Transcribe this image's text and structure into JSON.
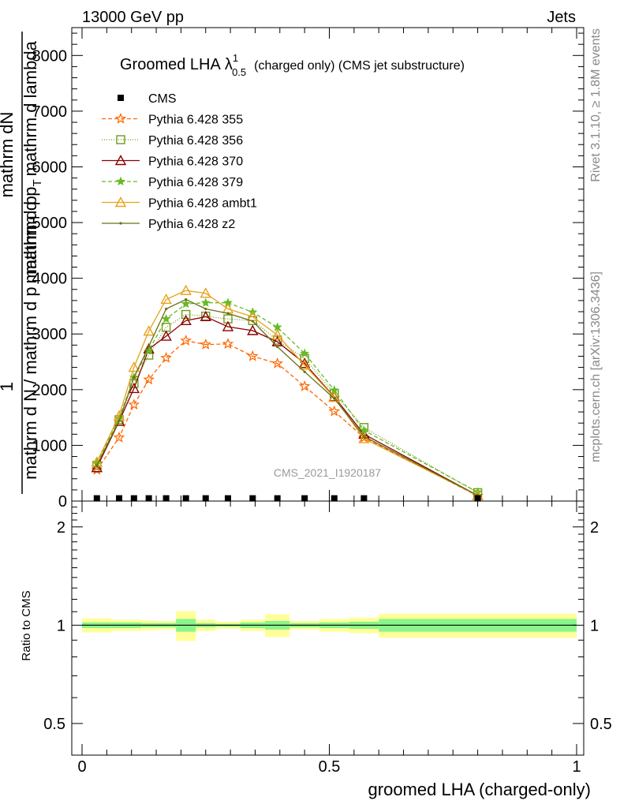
{
  "header": {
    "left": "13000 GeV pp",
    "right": "Jets"
  },
  "side_labels": {
    "rivet": "Rivet 3.1.10, ≥ 1.8M events",
    "mcplots": "mcplots.cern.ch [arXiv:1306.3436]"
  },
  "watermark": "CMS_2021_I1920187",
  "title": {
    "main": "Groomed LHA",
    "symbol": "λ",
    "sup": "1",
    "sub": "0.5",
    "suffix": "(charged only) (CMS jet substructure)"
  },
  "ylabel_top": {
    "numerator": "mathrm dN",
    "denominator": "mathrm d p",
    "denominator_sub": "T",
    "denominator_tail": "mathrm d lambda"
  },
  "ylabel_full": {
    "numerator": "1",
    "denominator": "mathrm d N / mathrm d p",
    "denominator_tail": "mathrm d p"
  },
  "xlabel": "groomed LHA (charged-only)",
  "ratio_ylabel": "Ratio to CMS",
  "colors": {
    "s355": "#ff6600",
    "s356": "#6f9a1c",
    "s370": "#8b0000",
    "s379": "#66bb22",
    "ambt1": "#e8a11a",
    "z2": "#6b7018",
    "band_inner": "#8af58a",
    "band_outer": "#ffff99"
  },
  "chart_data": [
    {
      "type": "line",
      "title": "Groomed LHA λ^1_0.5 (charged only) (CMS jet substructure)",
      "xlabel": "groomed LHA (charged-only)",
      "ylabel": "1 / (mathrm d N / mathrm d p) · mathrm dN / (mathrm d p_T mathrm d lambda)",
      "xlim": [
        -0.04,
        1.01
      ],
      "ylim": [
        0,
        8500
      ],
      "yticks": [
        0,
        1000,
        2000,
        3000,
        4000,
        5000,
        6000,
        7000,
        8000
      ],
      "ytick_labels": [
        "0",
        "1000",
        "2000",
        "3000",
        "4000",
        "5000",
        "6000",
        "7000",
        "8000"
      ],
      "legend_position": "top-left",
      "x": [
        0.03,
        0.075,
        0.105,
        0.135,
        0.17,
        0.21,
        0.25,
        0.295,
        0.345,
        0.395,
        0.45,
        0.51,
        0.57,
        0.8
      ],
      "data_points": {
        "name": "CMS",
        "x": [
          0.03,
          0.075,
          0.105,
          0.135,
          0.17,
          0.21,
          0.25,
          0.295,
          0.345,
          0.395,
          0.45,
          0.51,
          0.57,
          0.8
        ],
        "y": [
          20,
          20,
          20,
          20,
          20,
          20,
          20,
          20,
          20,
          20,
          20,
          20,
          20,
          20
        ]
      },
      "series": [
        {
          "name": "Pythia 6.428 355",
          "color": "#ff6600",
          "dash": "5,3",
          "marker": "star-open",
          "values": [
            560,
            1140,
            1730,
            2180,
            2570,
            2880,
            2810,
            2820,
            2600,
            2470,
            2060,
            1610,
            1140,
            90
          ]
        },
        {
          "name": "Pythia 6.428 356",
          "color": "#6f9a1c",
          "dash": "1,2",
          "marker": "square-open",
          "values": [
            640,
            1460,
            2110,
            2620,
            3120,
            3350,
            3320,
            3270,
            3240,
            2890,
            2560,
            1930,
            1320,
            150
          ]
        },
        {
          "name": "Pythia 6.428 370",
          "color": "#8b0000",
          "dash": "",
          "marker": "triangle-open",
          "values": [
            600,
            1430,
            2020,
            2730,
            2960,
            3240,
            3310,
            3130,
            3060,
            2860,
            2470,
            1870,
            1200,
            100
          ]
        },
        {
          "name": "Pythia 6.428 379",
          "color": "#66bb22",
          "dash": "5,3",
          "marker": "star-filled",
          "values": [
            680,
            1480,
            2220,
            2700,
            3270,
            3540,
            3560,
            3560,
            3390,
            3120,
            2650,
            1990,
            1270,
            160
          ]
        },
        {
          "name": "Pythia 6.428 ambt1",
          "color": "#e8a11a",
          "dash": "",
          "marker": "triangle-open",
          "values": [
            700,
            1530,
            2400,
            3050,
            3620,
            3780,
            3730,
            3450,
            3310,
            2980,
            2440,
            1860,
            1120,
            100
          ]
        },
        {
          "name": "Pythia 6.428 z2",
          "color": "#6b7018",
          "dash": "",
          "marker": "dot",
          "values": [
            640,
            1440,
            2220,
            2780,
            3450,
            3620,
            3450,
            3370,
            3230,
            2770,
            2320,
            1840,
            1160,
            100
          ]
        }
      ]
    },
    {
      "type": "area",
      "ylabel": "Ratio to CMS",
      "xlabel": "groomed LHA (charged-only)",
      "ylim": [
        0.4,
        2.4
      ],
      "log_y": true,
      "yticks": [
        0.5,
        1,
        2
      ],
      "ytick_labels": [
        "0.5",
        "1",
        "2"
      ],
      "xticks": [
        0,
        0.5,
        1
      ],
      "xtick_labels": [
        "0",
        "0.5",
        "1"
      ],
      "reference_line": 1,
      "bins": [
        {
          "x": [
            0.0,
            0.06
          ],
          "inner": [
            0.98,
            1.02
          ],
          "outer": [
            0.95,
            1.05
          ]
        },
        {
          "x": [
            0.06,
            0.09
          ],
          "inner": [
            0.98,
            1.02
          ],
          "outer": [
            0.96,
            1.04
          ]
        },
        {
          "x": [
            0.09,
            0.12
          ],
          "inner": [
            0.98,
            1.02
          ],
          "outer": [
            0.96,
            1.04
          ]
        },
        {
          "x": [
            0.12,
            0.15
          ],
          "inner": [
            0.985,
            1.015
          ],
          "outer": [
            0.965,
            1.035
          ]
        },
        {
          "x": [
            0.15,
            0.19
          ],
          "inner": [
            0.985,
            1.015
          ],
          "outer": [
            0.97,
            1.03
          ]
        },
        {
          "x": [
            0.19,
            0.23
          ],
          "inner": [
            0.955,
            1.045
          ],
          "outer": [
            0.895,
            1.105
          ]
        },
        {
          "x": [
            0.23,
            0.27
          ],
          "inner": [
            0.985,
            1.015
          ],
          "outer": [
            0.96,
            1.04
          ]
        },
        {
          "x": [
            0.27,
            0.32
          ],
          "inner": [
            0.99,
            1.01
          ],
          "outer": [
            0.975,
            1.025
          ]
        },
        {
          "x": [
            0.32,
            0.37
          ],
          "inner": [
            0.98,
            1.02
          ],
          "outer": [
            0.96,
            1.04
          ]
        },
        {
          "x": [
            0.37,
            0.42
          ],
          "inner": [
            0.97,
            1.03
          ],
          "outer": [
            0.92,
            1.08
          ]
        },
        {
          "x": [
            0.42,
            0.48
          ],
          "inner": [
            0.985,
            1.015
          ],
          "outer": [
            0.97,
            1.03
          ]
        },
        {
          "x": [
            0.48,
            0.54
          ],
          "inner": [
            0.98,
            1.02
          ],
          "outer": [
            0.955,
            1.045
          ]
        },
        {
          "x": [
            0.54,
            0.6
          ],
          "inner": [
            0.975,
            1.025
          ],
          "outer": [
            0.945,
            1.055
          ]
        },
        {
          "x": [
            0.6,
            1.0
          ],
          "inner": [
            0.955,
            1.045
          ],
          "outer": [
            0.915,
            1.085
          ]
        }
      ]
    }
  ]
}
